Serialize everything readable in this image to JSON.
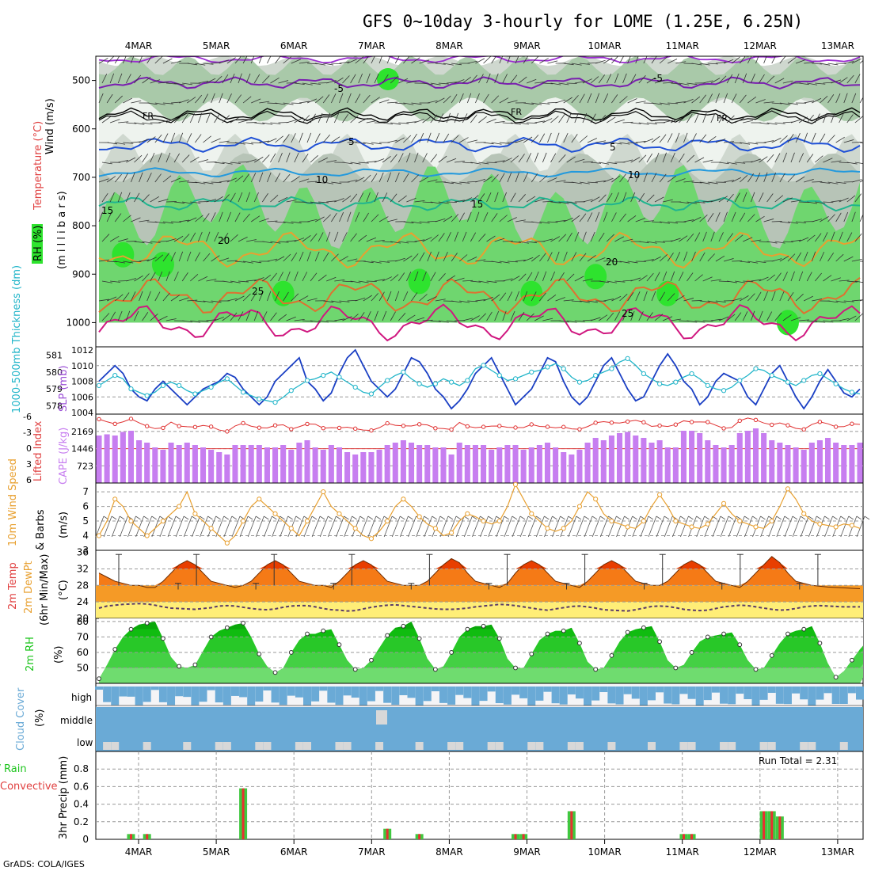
{
  "title": "GFS 0~10day 3-hourly for LOME (1.25E, 6.25N)",
  "footer": "GrADS: COLA/IGES",
  "dates": [
    "4MAR",
    "5MAR",
    "6MAR",
    "7MAR",
    "8MAR",
    "9MAR",
    "10MAR",
    "11MAR",
    "12MAR",
    "13MAR"
  ],
  "colors": {
    "rh_light": "#cfd8cf",
    "rh_mid": "#b7c4b7",
    "rh_green": "#6fd66f",
    "rh_bright": "#2ee32e",
    "cape": "#c77ef0",
    "thick": "#21b5c9",
    "slp": "#1a3fc4",
    "wind": "#e8a030",
    "temp_red": "#e83e00",
    "temp_orange": "#f59a26",
    "dew": "#ffee77",
    "rh2m": "#1cc41c",
    "cloud": "#6aaad6",
    "rain": "#40c840",
    "conv": "#e83030"
  },
  "panels": {
    "upper": {
      "side_labels": {
        "wind": "Wind (m/s)",
        "temperature": "Temperature (°C)",
        "rh": "RH (%)",
        "unit": "(m i l l i b a r s)"
      },
      "y_ticks": [
        "500",
        "600",
        "700",
        "800",
        "900",
        "1000"
      ],
      "contour_labels": {
        "t_m5": "-5",
        "fr": "FR",
        "t5": "5",
        "t10": "10",
        "t15": "15",
        "t20": "20",
        "t25": "25"
      }
    },
    "slp": {
      "side_labels": {
        "thick": "1000-500mb Thickness (dm)",
        "slp": "SLP (mb)"
      },
      "left_ticks": [
        "581",
        "580",
        "579",
        "578"
      ],
      "right_ticks": [
        "1012",
        "1010",
        "1008",
        "1006",
        "1004"
      ]
    },
    "cape": {
      "side_labels": {
        "li": "Lifted Index",
        "cape": "CAPE (J/kg)"
      },
      "left_ticks": [
        "-6",
        "-3",
        "0",
        "3",
        "6"
      ],
      "right_ticks": [
        "2169",
        "1446",
        "723"
      ]
    },
    "wind10m": {
      "side_labels": {
        "speed": "10m Wind Speed",
        "barbs": "& Barbs",
        "unit": "(m/s)"
      },
      "y_ticks": [
        "7",
        "6",
        "5",
        "4",
        "3"
      ]
    },
    "temp": {
      "side_labels": {
        "temp": "2m Temp",
        "dew": "2m DewPt",
        "minmax": "(6hr Min/Max)",
        "unit": "(°C)"
      },
      "y_ticks": [
        "36",
        "32",
        "28",
        "24",
        "20"
      ]
    },
    "rh2m": {
      "side_labels": {
        "rh": "2m RH",
        "unit": "(%)"
      },
      "y_ticks": [
        "80",
        "70",
        "60",
        "50"
      ]
    },
    "cloud": {
      "side_labels": {
        "cover": "Cloud Cover",
        "unit": "(%)"
      },
      "levels": [
        "high",
        "middle",
        "low"
      ]
    },
    "precip": {
      "side_labels": {
        "total": "Total / Rain",
        "conv": "Convective",
        "precip": "3hr Precip (mm)"
      },
      "y_ticks": [
        "0.8",
        "0.6",
        "0.4",
        "0.2",
        "0"
      ],
      "run_total": "Run Total = 2.31"
    }
  },
  "chart_data": [
    {
      "type": "line",
      "name": "sea level pressure",
      "ylabel": "SLP (mb)",
      "ylim": [
        1004,
        1012
      ],
      "values": [
        1008,
        1009,
        1010,
        1009,
        1007,
        1006,
        1005.5,
        1007,
        1008,
        1007,
        1006,
        1005,
        1006,
        1007,
        1007.5,
        1008,
        1009,
        1008.5,
        1007,
        1006,
        1005,
        1006,
        1008,
        1009,
        1010,
        1011,
        1008,
        1007,
        1005.5,
        1006.5,
        1009,
        1011,
        1012,
        1010,
        1008,
        1007,
        1006,
        1007,
        1009,
        1011,
        1010.5,
        1009,
        1007,
        1006,
        1004.5,
        1005.5,
        1007,
        1009,
        1010,
        1011,
        1009,
        1007,
        1005,
        1006,
        1007,
        1009,
        1011,
        1010.5,
        1008,
        1006,
        1005,
        1006,
        1008,
        1010,
        1011,
        1009,
        1007,
        1005.5,
        1006,
        1008,
        1010,
        1011.5,
        1010,
        1008,
        1007,
        1005,
        1006,
        1008,
        1009,
        1008.5,
        1008,
        1006,
        1005,
        1007,
        1009,
        1010,
        1008,
        1006,
        1004.5,
        1006,
        1008,
        1009.5,
        1008,
        1006.5,
        1006,
        1007
      ]
    },
    {
      "type": "line",
      "name": "1000-500mb thickness",
      "ylabel": "Thickness (dm)",
      "ylim": [
        577.5,
        581.5
      ],
      "values": [
        579.2,
        579.5,
        579.8,
        579.6,
        579,
        578.8,
        578.6,
        578.8,
        579.2,
        579.4,
        579.2,
        578.9,
        578.7,
        578.9,
        579.1,
        579.4,
        579.6,
        579.2,
        578.8,
        578.6,
        578.4,
        578.3,
        578.2,
        578.5,
        578.9,
        579.2,
        579.5,
        579.6,
        579.8,
        580,
        579.7,
        579.4,
        579.1,
        578.8,
        578.7,
        579.1,
        579.5,
        579.8,
        580,
        579.6,
        579.3,
        579.1,
        579.3,
        579.6,
        579.4,
        579.2,
        579.5,
        580.2,
        580.4,
        580.1,
        579.8,
        579.5,
        579.6,
        579.8,
        580,
        580.1,
        580.3,
        580.5,
        580.2,
        579.7,
        579.4,
        579.5,
        579.8,
        580,
        580.2,
        580.6,
        580.8,
        580.4,
        579.9,
        579.6,
        579.3,
        579.2,
        579.4,
        579.7,
        579.9,
        579.6,
        579.2,
        579,
        578.9,
        579.1,
        579.5,
        579.8,
        580.2,
        580.1,
        579.8,
        579.6,
        579.4,
        579.2,
        579.5,
        579.8,
        579.9,
        579.6,
        579.3,
        579,
        578.8,
        578.7
      ]
    },
    {
      "type": "bar",
      "name": "CAPE",
      "ylabel": "CAPE (J/kg)",
      "ylim": [
        0,
        2900
      ],
      "values": [
        2000,
        2050,
        2000,
        2150,
        2200,
        1800,
        1700,
        1500,
        1400,
        1700,
        1600,
        1700,
        1600,
        1500,
        1400,
        1300,
        1200,
        1600,
        1600,
        1600,
        1600,
        1500,
        1500,
        1600,
        1400,
        1700,
        1800,
        1500,
        1400,
        1600,
        1500,
        1300,
        1200,
        1300,
        1300,
        1400,
        1600,
        1700,
        1800,
        1700,
        1600,
        1600,
        1500,
        1500,
        1200,
        1700,
        1600,
        1600,
        1600,
        1400,
        1500,
        1600,
        1600,
        1400,
        1500,
        1600,
        1700,
        1500,
        1300,
        1200,
        1400,
        1700,
        1900,
        1800,
        2000,
        2100,
        2150,
        2000,
        1900,
        1700,
        1800,
        1500,
        1500,
        2200,
        2200,
        2100,
        1800,
        1600,
        1500,
        1600,
        2100,
        2200,
        2300,
        2100,
        1800,
        1700,
        1600,
        1500,
        1400,
        1700,
        1800,
        1900,
        1700,
        1600,
        1600,
        1700
      ]
    },
    {
      "type": "line",
      "name": "10m wind speed",
      "ylabel": "(m/s)",
      "ylim": [
        3,
        7.5
      ],
      "values": [
        4,
        5,
        6.5,
        6,
        5,
        4.5,
        4,
        4.5,
        5,
        5.5,
        6,
        7,
        5.5,
        5,
        4.5,
        4,
        3.5,
        4,
        5,
        6,
        6.5,
        6,
        5.5,
        5,
        4.5,
        4,
        5,
        6,
        7,
        6,
        5.5,
        5,
        4.5,
        4,
        3.8,
        4.3,
        5,
        6,
        6.5,
        6,
        5.3,
        4.8,
        4.5,
        4,
        4.2,
        5,
        5.5,
        5.3,
        5,
        4.8,
        5,
        6,
        7.5,
        6.5,
        5.5,
        5,
        4.5,
        4.3,
        4.5,
        5,
        6,
        7,
        6.5,
        5.5,
        5,
        4.8,
        4.6,
        4.5,
        5,
        6,
        6.8,
        6,
        5,
        4.8,
        4.6,
        4.5,
        4.8,
        5.5,
        6.2,
        5.5,
        5,
        4.8,
        4.6,
        4.5,
        5,
        6,
        7.2,
        6.5,
        5.5,
        5,
        4.8,
        4.7,
        4.6,
        4.8,
        4.7,
        4.5
      ]
    },
    {
      "type": "area",
      "name": "2m temperature",
      "ylabel": "(°C)",
      "ylim": [
        20,
        36
      ],
      "values": [
        31,
        30,
        29,
        28.5,
        28,
        28,
        27.5,
        27.5,
        29,
        31,
        33,
        34,
        33,
        31,
        29,
        28.5,
        28,
        27.5,
        28,
        29,
        31,
        33,
        34,
        33,
        31,
        29,
        28.5,
        28,
        28,
        27.5,
        29,
        31,
        33,
        34,
        33,
        31,
        29,
        28.5,
        28,
        28,
        28,
        29,
        31,
        33,
        34.5,
        33.5,
        31,
        29,
        28.5,
        28,
        27.5,
        28.5,
        31,
        33,
        34,
        33,
        31,
        29,
        28.5,
        28,
        27.5,
        29,
        31,
        33,
        34,
        33,
        31,
        29,
        28.5,
        28,
        28,
        29,
        31,
        33,
        34,
        33,
        31,
        29,
        28.5,
        28,
        27.5,
        29,
        31,
        33,
        35,
        33.5,
        31,
        29,
        28.5,
        28,
        27.8,
        27.6,
        27.5,
        27.4,
        27.3,
        27.2
      ]
    },
    {
      "type": "line",
      "name": "2m dew point",
      "ylabel": "(°C)",
      "ylim": [
        20,
        36
      ],
      "values": [
        22.5,
        23,
        23.2,
        23.4,
        23.5,
        23.6,
        23.5,
        23.2,
        22.8,
        22.5,
        22.4,
        22.3,
        22.2,
        22.4,
        22.6,
        23,
        23.1,
        23,
        22.7,
        22.4,
        22.2,
        22.1,
        22.3,
        22.7,
        23,
        23.1,
        23.1,
        22.8,
        22.4,
        22.1,
        22,
        21.8,
        21.9,
        22.3,
        22.7,
        23,
        23.2,
        23.3,
        23.1,
        22.9,
        22.7,
        22.5,
        22.3,
        22.2,
        22.2,
        22.3,
        22.5,
        22.8,
        23,
        23.2,
        23.4,
        23.3,
        23.1,
        22.8,
        22.5,
        22.2,
        22,
        22.3,
        22.6,
        22.9,
        23,
        22.8,
        22.5,
        22.1,
        22,
        21.9,
        21.8,
        22.1,
        22.5,
        22.9,
        23,
        22.9,
        22.6,
        22.2,
        22,
        21.9,
        22,
        22.4,
        22.8,
        23,
        23.2,
        23.1,
        22.8,
        22.5,
        22.2,
        22,
        22.1,
        22.4,
        22.8,
        23,
        23.1,
        23,
        22.9,
        22.8,
        22.8,
        22.8
      ]
    },
    {
      "type": "area",
      "name": "2m RH",
      "ylabel": "(%)",
      "ylim": [
        40,
        82
      ],
      "values": [
        43,
        52,
        62,
        70,
        75,
        78,
        79,
        80,
        69,
        57,
        51,
        50,
        52,
        61,
        70,
        74,
        76,
        78,
        79,
        70,
        59,
        51,
        47,
        50,
        60,
        68,
        72,
        72,
        74,
        75,
        65,
        55,
        49,
        50,
        55,
        63,
        71,
        76,
        77,
        80,
        69,
        56,
        49,
        51,
        60,
        70,
        75,
        77,
        77,
        78,
        69,
        56,
        50,
        50,
        59,
        68,
        72,
        74,
        74,
        76,
        66,
        54,
        49,
        50,
        58,
        67,
        73,
        75,
        76,
        77,
        67,
        55,
        50,
        52,
        60,
        67,
        70,
        71,
        72,
        73,
        65,
        55,
        49,
        50,
        58,
        66,
        72,
        74,
        75,
        77,
        66,
        53,
        44,
        48,
        55,
        62,
        68,
        71,
        73,
        75
      ]
    },
    {
      "type": "bar",
      "name": "3hr precip",
      "ylabel": "3hr Precip (mm)",
      "ylim": [
        0,
        1
      ],
      "points": [
        {
          "x": 4,
          "y": 0.06
        },
        {
          "x": 6,
          "y": 0.06
        },
        {
          "x": 18,
          "y": 0.58
        },
        {
          "x": 36,
          "y": 0.12
        },
        {
          "x": 40,
          "y": 0.06
        },
        {
          "x": 52,
          "y": 0.06
        },
        {
          "x": 53,
          "y": 0.06
        },
        {
          "x": 59,
          "y": 0.32
        },
        {
          "x": 73,
          "y": 0.06
        },
        {
          "x": 74,
          "y": 0.06
        },
        {
          "x": 83,
          "y": 0.32
        },
        {
          "x": 84,
          "y": 0.32
        },
        {
          "x": 85,
          "y": 0.26
        }
      ]
    }
  ]
}
